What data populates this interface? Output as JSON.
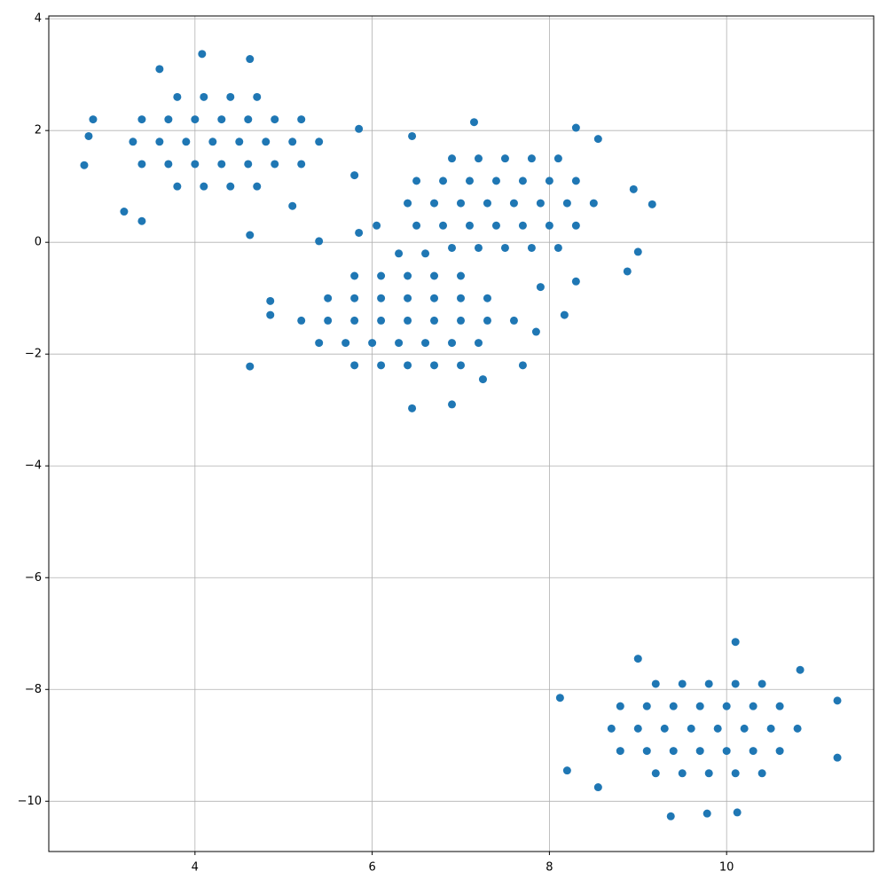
{
  "chart_data": {
    "type": "scatter",
    "color": "#1f77b4",
    "grid": true,
    "xlim": [
      2.35,
      11.66
    ],
    "ylim": [
      -10.9,
      4.05
    ],
    "xticks": [
      4,
      6,
      8,
      10
    ],
    "yticks": [
      4,
      2,
      0,
      {
        "value": -2,
        "label": "−2"
      },
      {
        "value": -4,
        "label": "−4"
      },
      {
        "value": -6,
        "label": "−6"
      },
      {
        "value": -8,
        "label": "−8"
      },
      {
        "value": -10,
        "label": "−10"
      }
    ],
    "x": [
      3.3,
      3.6,
      3.9,
      4.2,
      4.5,
      4.8,
      5.1,
      5.4,
      3.4,
      3.7,
      4.0,
      4.3,
      4.6,
      4.9,
      5.2,
      3.4,
      3.7,
      4.0,
      4.3,
      4.6,
      4.9,
      5.2,
      3.8,
      4.1,
      4.4,
      4.7,
      3.8,
      4.1,
      4.4,
      4.7,
      2.75,
      2.8,
      2.85,
      4.08,
      4.62,
      4.62,
      5.85,
      3.2,
      5.1,
      3.4,
      5.8,
      3.6,
      6.4,
      6.7,
      7.0,
      7.3,
      7.6,
      7.9,
      8.2,
      8.5,
      6.5,
      6.8,
      7.1,
      7.4,
      7.7,
      8.0,
      8.3,
      6.5,
      6.8,
      7.1,
      7.4,
      7.7,
      8.0,
      8.3,
      6.9,
      7.2,
      7.5,
      7.8,
      8.1,
      6.9,
      7.2,
      7.5,
      7.8,
      8.1,
      9.16,
      9.0,
      8.88,
      8.17,
      7.15,
      8.3,
      6.45,
      8.55,
      8.95,
      7.9,
      8.3,
      5.2,
      5.5,
      5.8,
      6.1,
      6.4,
      6.7,
      7.0,
      7.3,
      7.6,
      5.5,
      5.8,
      6.1,
      6.4,
      6.7,
      7.0,
      7.3,
      5.4,
      5.7,
      6.0,
      6.3,
      6.6,
      6.9,
      7.2,
      5.8,
      6.1,
      6.4,
      6.7,
      7.0,
      5.8,
      6.1,
      6.4,
      6.7,
      7.0,
      6.3,
      6.6,
      4.62,
      4.85,
      4.85,
      6.45,
      6.9,
      7.7,
      7.85,
      5.85,
      6.05,
      5.4,
      7.25,
      8.7,
      9.0,
      9.3,
      9.6,
      9.9,
      10.2,
      10.5,
      10.8,
      8.8,
      9.1,
      9.4,
      9.7,
      10.0,
      10.3,
      10.6,
      8.8,
      9.1,
      9.4,
      9.7,
      10.0,
      10.3,
      10.6,
      9.2,
      9.5,
      9.8,
      10.1,
      10.4,
      9.2,
      9.5,
      9.8,
      10.1,
      10.4,
      8.12,
      8.2,
      11.25,
      11.25,
      10.1,
      9.37,
      9.78,
      10.12,
      8.55,
      10.83,
      9.0
    ],
    "y": [
      1.8,
      1.8,
      1.8,
      1.8,
      1.8,
      1.8,
      1.8,
      1.8,
      2.2,
      2.2,
      2.2,
      2.2,
      2.2,
      2.2,
      2.2,
      1.4,
      1.4,
      1.4,
      1.4,
      1.4,
      1.4,
      1.4,
      2.6,
      2.6,
      2.6,
      2.6,
      1.0,
      1.0,
      1.0,
      1.0,
      1.38,
      1.9,
      2.2,
      3.37,
      3.28,
      0.13,
      2.03,
      0.55,
      0.65,
      0.38,
      1.2,
      3.1,
      0.7,
      0.7,
      0.7,
      0.7,
      0.7,
      0.7,
      0.7,
      0.7,
      1.1,
      1.1,
      1.1,
      1.1,
      1.1,
      1.1,
      1.1,
      0.3,
      0.3,
      0.3,
      0.3,
      0.3,
      0.3,
      0.3,
      1.5,
      1.5,
      1.5,
      1.5,
      1.5,
      -0.1,
      -0.1,
      -0.1,
      -0.1,
      -0.1,
      0.68,
      -0.17,
      -0.52,
      -1.3,
      2.15,
      2.05,
      1.9,
      1.85,
      0.95,
      -0.8,
      -0.7,
      -1.4,
      -1.4,
      -1.4,
      -1.4,
      -1.4,
      -1.4,
      -1.4,
      -1.4,
      -1.4,
      -1.0,
      -1.0,
      -1.0,
      -1.0,
      -1.0,
      -1.0,
      -1.0,
      -1.8,
      -1.8,
      -1.8,
      -1.8,
      -1.8,
      -1.8,
      -1.8,
      -0.6,
      -0.6,
      -0.6,
      -0.6,
      -0.6,
      -2.2,
      -2.2,
      -2.2,
      -2.2,
      -2.2,
      -0.2,
      -0.2,
      -2.22,
      -1.05,
      -1.3,
      -2.97,
      -2.9,
      -2.2,
      -1.6,
      0.17,
      0.3,
      0.02,
      -2.45,
      -8.7,
      -8.7,
      -8.7,
      -8.7,
      -8.7,
      -8.7,
      -8.7,
      -8.7,
      -8.3,
      -8.3,
      -8.3,
      -8.3,
      -8.3,
      -8.3,
      -8.3,
      -9.1,
      -9.1,
      -9.1,
      -9.1,
      -9.1,
      -9.1,
      -9.1,
      -7.9,
      -7.9,
      -7.9,
      -7.9,
      -7.9,
      -9.5,
      -9.5,
      -9.5,
      -9.5,
      -9.5,
      -8.15,
      -9.45,
      -8.2,
      -9.22,
      -7.15,
      -10.27,
      -10.22,
      -10.2,
      -9.75,
      -7.65,
      -7.45
    ]
  }
}
